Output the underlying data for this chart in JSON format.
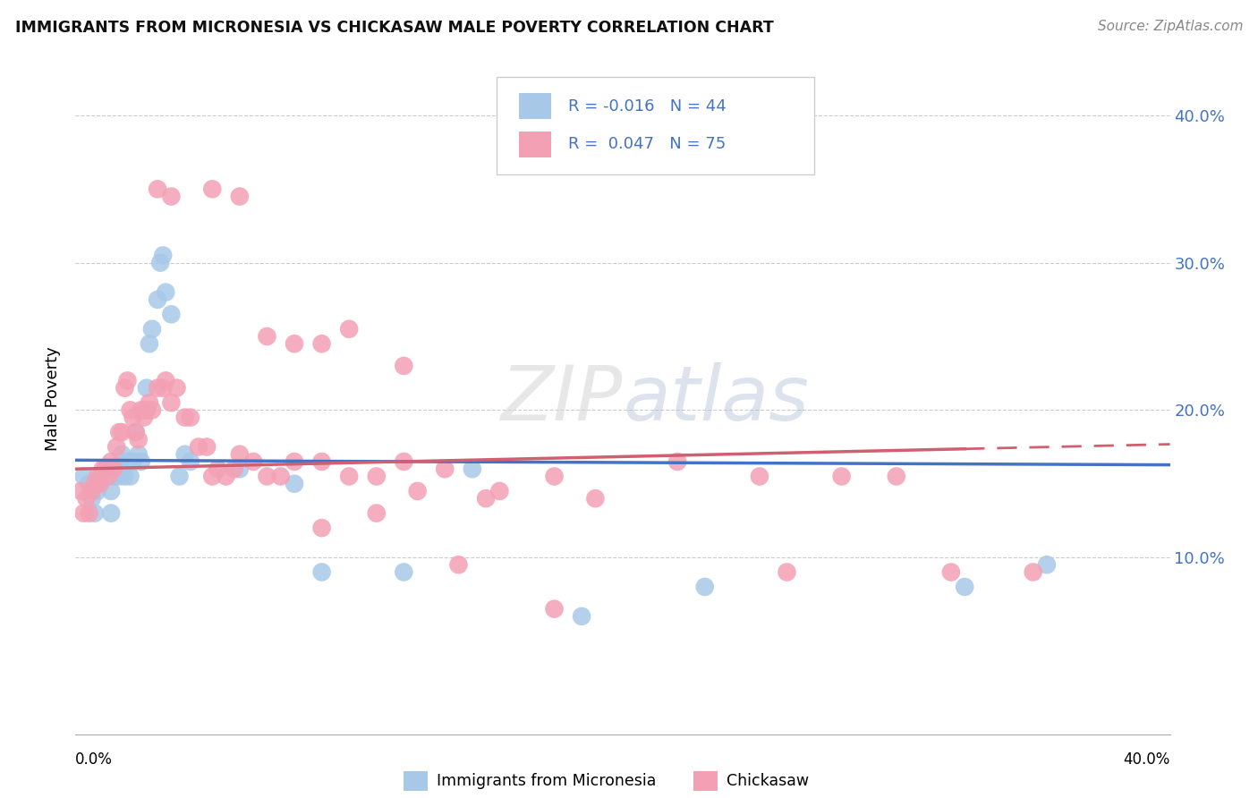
{
  "title": "IMMIGRANTS FROM MICRONESIA VS CHICKASAW MALE POVERTY CORRELATION CHART",
  "source": "Source: ZipAtlas.com",
  "ylabel": "Male Poverty",
  "xlim": [
    0.0,
    0.4
  ],
  "ylim": [
    -0.02,
    0.435
  ],
  "color_blue": "#a8c8e8",
  "color_pink": "#f4a0b4",
  "line_color_blue": "#4472c4",
  "line_color_pink": "#d06070",
  "blue_line_intercept": 0.166,
  "blue_line_slope": -0.008,
  "pink_line_intercept": 0.16,
  "pink_line_slope": 0.042,
  "blue_x": [
    0.003,
    0.005,
    0.006,
    0.007,
    0.008,
    0.009,
    0.01,
    0.011,
    0.012,
    0.013,
    0.013,
    0.014,
    0.015,
    0.016,
    0.016,
    0.017,
    0.018,
    0.019,
    0.02,
    0.021,
    0.022,
    0.023,
    0.024,
    0.025,
    0.026,
    0.027,
    0.028,
    0.03,
    0.031,
    0.032,
    0.033,
    0.035,
    0.038,
    0.04,
    0.042,
    0.06,
    0.08,
    0.09,
    0.12,
    0.145,
    0.185,
    0.23,
    0.325,
    0.355
  ],
  "blue_y": [
    0.155,
    0.15,
    0.14,
    0.13,
    0.145,
    0.155,
    0.155,
    0.16,
    0.16,
    0.145,
    0.13,
    0.155,
    0.16,
    0.16,
    0.155,
    0.17,
    0.155,
    0.165,
    0.155,
    0.165,
    0.185,
    0.17,
    0.165,
    0.2,
    0.215,
    0.245,
    0.255,
    0.275,
    0.3,
    0.305,
    0.28,
    0.265,
    0.155,
    0.17,
    0.165,
    0.16,
    0.15,
    0.09,
    0.09,
    0.16,
    0.06,
    0.08,
    0.08,
    0.095
  ],
  "pink_x": [
    0.002,
    0.003,
    0.004,
    0.005,
    0.006,
    0.007,
    0.008,
    0.009,
    0.01,
    0.011,
    0.012,
    0.013,
    0.014,
    0.015,
    0.016,
    0.017,
    0.018,
    0.019,
    0.02,
    0.021,
    0.022,
    0.023,
    0.024,
    0.025,
    0.026,
    0.027,
    0.028,
    0.03,
    0.032,
    0.033,
    0.035,
    0.037,
    0.04,
    0.042,
    0.045,
    0.048,
    0.05,
    0.052,
    0.055,
    0.058,
    0.06,
    0.065,
    0.07,
    0.075,
    0.08,
    0.09,
    0.1,
    0.11,
    0.12,
    0.135,
    0.155,
    0.175,
    0.19,
    0.22,
    0.25,
    0.26,
    0.28,
    0.3,
    0.32,
    0.35,
    0.03,
    0.035,
    0.05,
    0.06,
    0.07,
    0.08,
    0.09,
    0.1,
    0.12,
    0.14,
    0.09,
    0.11,
    0.125,
    0.15,
    0.175
  ],
  "pink_y": [
    0.145,
    0.13,
    0.14,
    0.13,
    0.145,
    0.15,
    0.155,
    0.15,
    0.16,
    0.16,
    0.155,
    0.165,
    0.16,
    0.175,
    0.185,
    0.185,
    0.215,
    0.22,
    0.2,
    0.195,
    0.185,
    0.18,
    0.2,
    0.195,
    0.2,
    0.205,
    0.2,
    0.215,
    0.215,
    0.22,
    0.205,
    0.215,
    0.195,
    0.195,
    0.175,
    0.175,
    0.155,
    0.16,
    0.155,
    0.16,
    0.17,
    0.165,
    0.155,
    0.155,
    0.165,
    0.165,
    0.155,
    0.155,
    0.165,
    0.16,
    0.145,
    0.155,
    0.14,
    0.165,
    0.155,
    0.09,
    0.155,
    0.155,
    0.09,
    0.09,
    0.35,
    0.345,
    0.35,
    0.345,
    0.25,
    0.245,
    0.245,
    0.255,
    0.23,
    0.095,
    0.12,
    0.13,
    0.145,
    0.14,
    0.065
  ]
}
